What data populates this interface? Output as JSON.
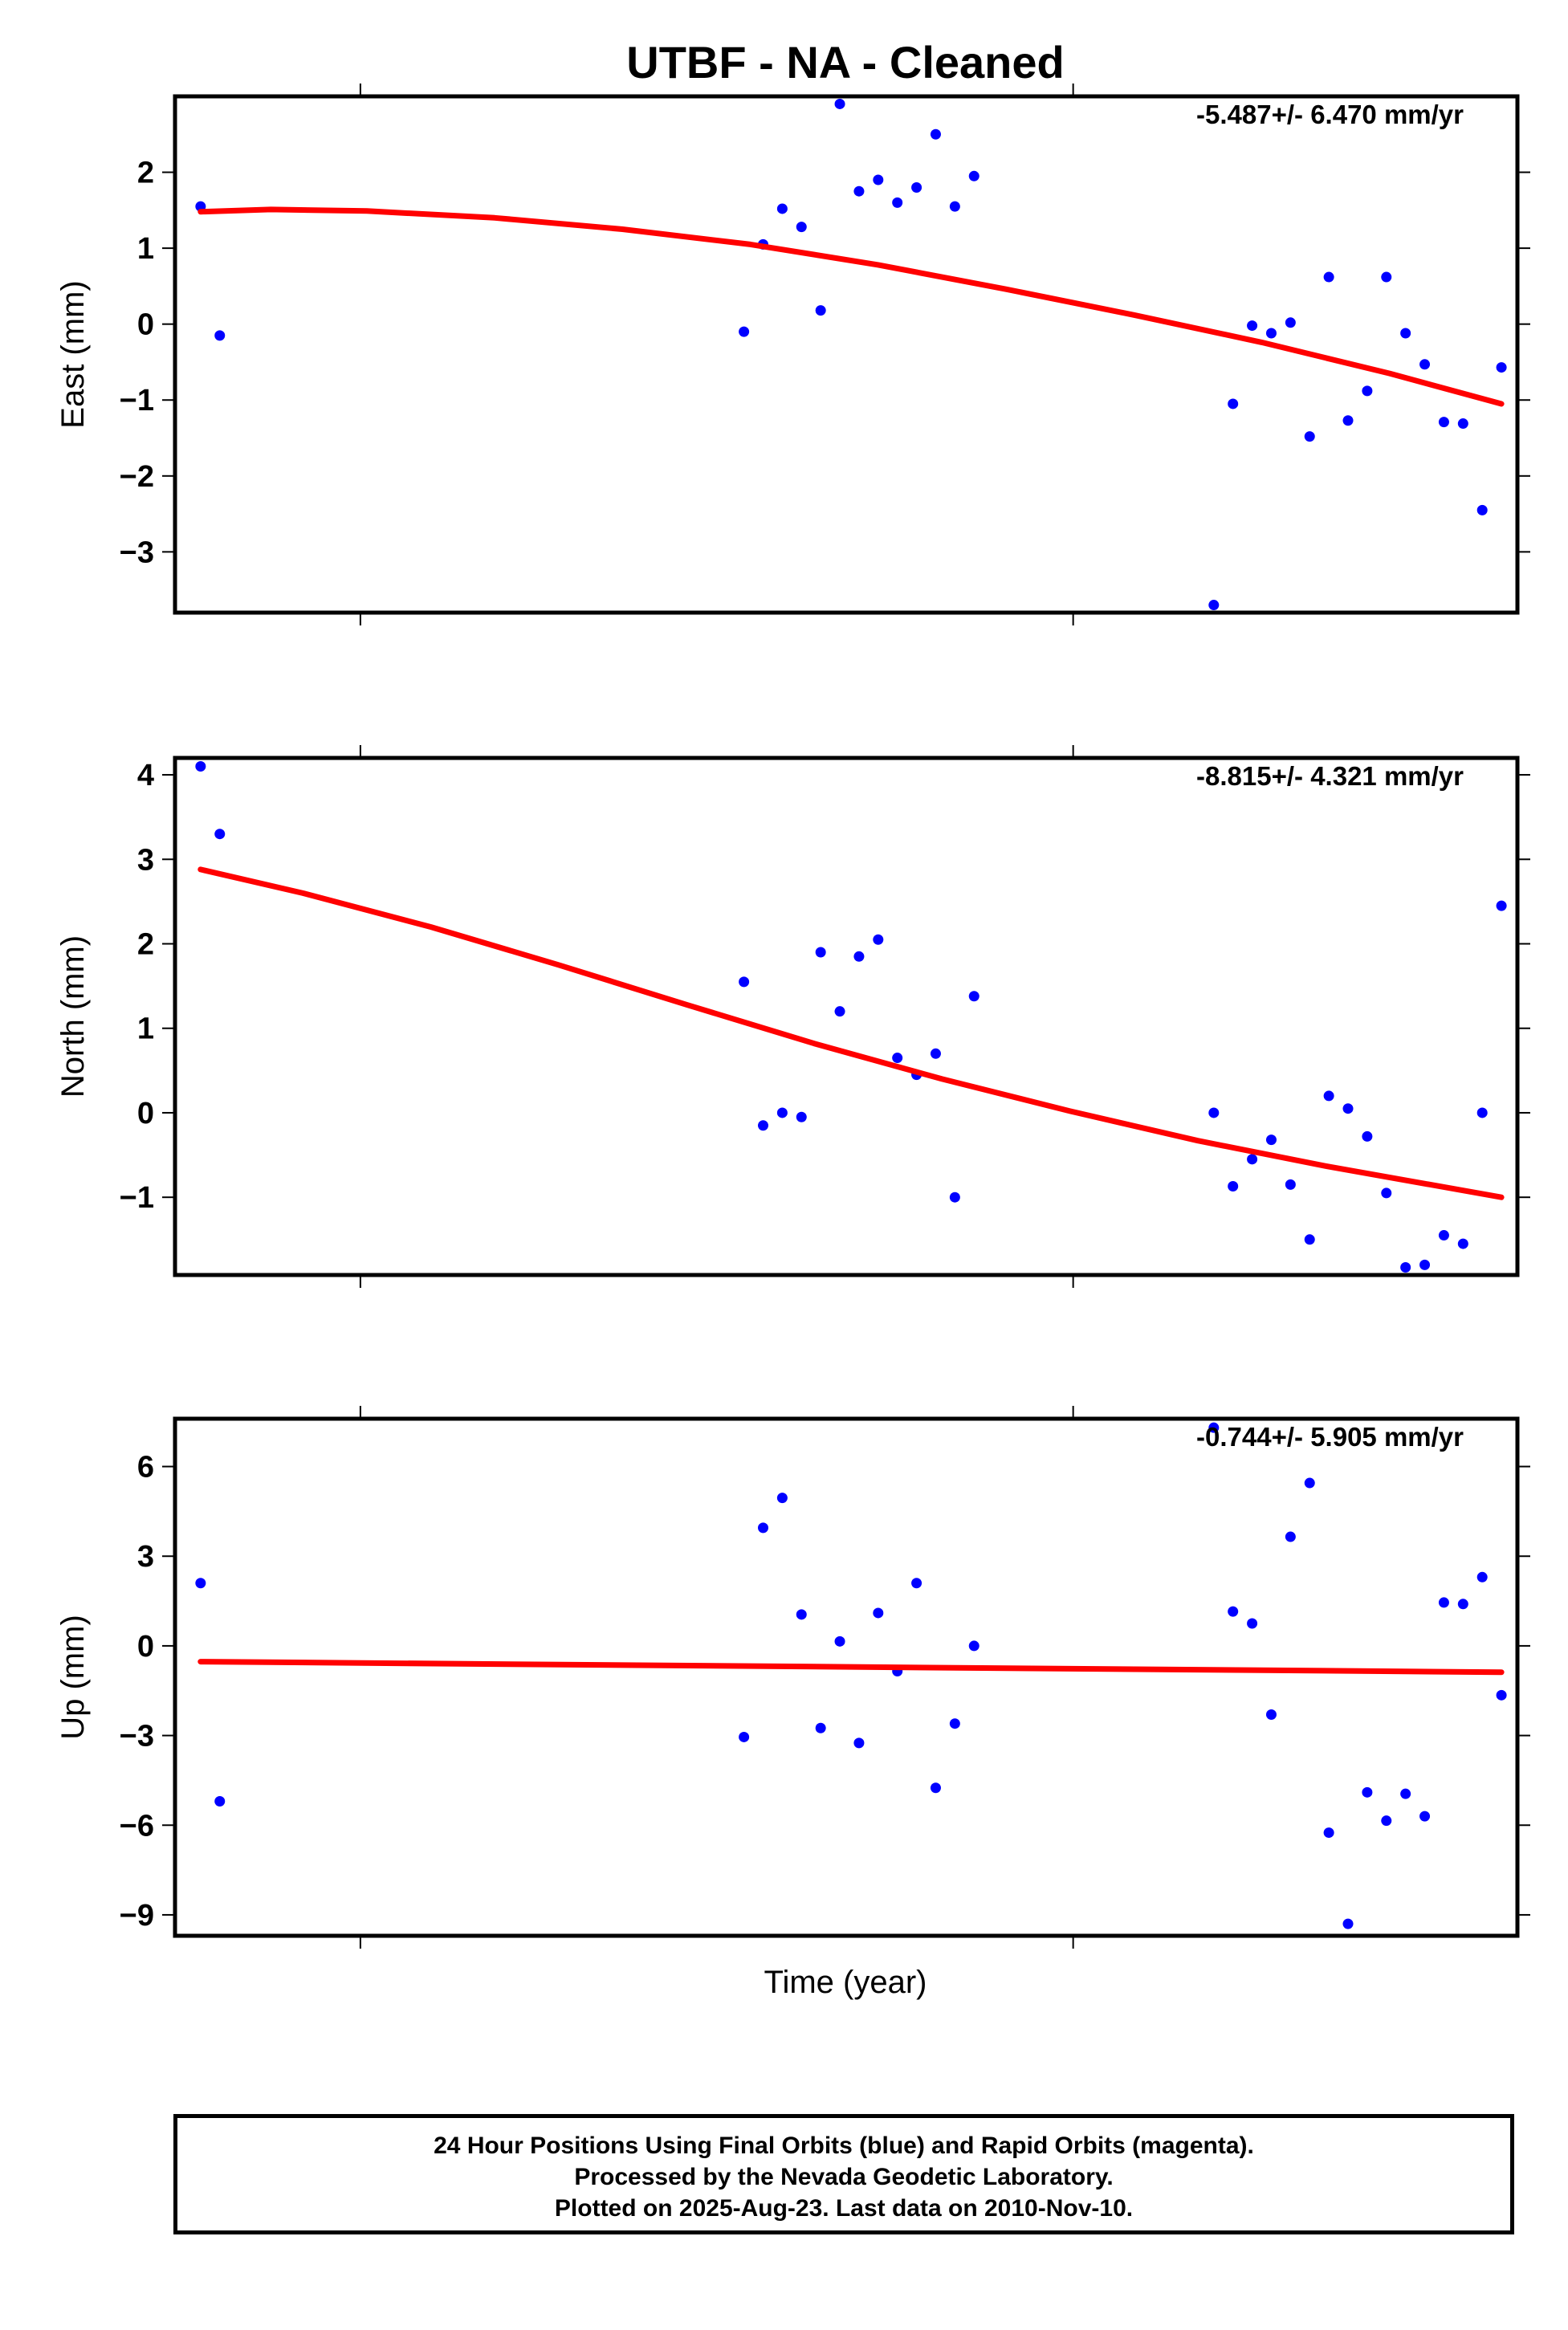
{
  "title": "UTBF  - NA - Cleaned",
  "xlabel": "Time (year)",
  "colors": {
    "fit_line": "#ff0000",
    "final_points": "#0000ff",
    "axes": "#000000"
  },
  "caption": [
    "24 Hour Positions Using Final Orbits (blue) and Rapid Orbits (magenta).",
    "Processed by the Nevada Geodetic Laboratory.",
    "Plotted on 2025-Aug-23. Last data on 2010-Nov-10."
  ],
  "chart_data": [
    {
      "type": "scatter",
      "ylabel": "East (mm)",
      "rate_label": "-5.487+/- 6.470 mm/yr",
      "ylim": [
        -3.8,
        3.0
      ],
      "yticks": [
        2,
        1,
        0,
        -1,
        -2,
        -3
      ],
      "ytick_labels": [
        "2",
        "1",
        "0",
        "−1",
        "−2",
        "−3"
      ],
      "xlim": [
        2010.46,
        2010.88
      ],
      "xtick_positions": [
        2010.518,
        2010.741
      ],
      "x": [
        2010.468,
        2010.474,
        2010.638,
        2010.644,
        2010.65,
        2010.656,
        2010.662,
        2010.668,
        2010.674,
        2010.68,
        2010.686,
        2010.692,
        2010.698,
        2010.704,
        2010.71,
        2010.785,
        2010.791,
        2010.797,
        2010.803,
        2010.809,
        2010.815,
        2010.821,
        2010.827,
        2010.833,
        2010.839,
        2010.845,
        2010.851,
        2010.857,
        2010.863,
        2010.869,
        2010.875
      ],
      "y": [
        1.55,
        -0.15,
        -0.1,
        1.05,
        1.52,
        1.28,
        0.18,
        2.9,
        1.75,
        1.9,
        1.6,
        1.8,
        2.5,
        1.55,
        1.95,
        -3.7,
        -1.05,
        -0.02,
        -0.12,
        0.02,
        -1.48,
        0.62,
        -1.27,
        -0.88,
        0.62,
        -0.12,
        -0.53,
        -1.29,
        -1.31,
        -2.45,
        -0.57
      ],
      "fit": {
        "x": [
          2010.468,
          2010.49,
          2010.52,
          2010.56,
          2010.6,
          2010.64,
          2010.68,
          2010.72,
          2010.76,
          2010.8,
          2010.84,
          2010.875
        ],
        "y": [
          1.48,
          1.51,
          1.49,
          1.4,
          1.25,
          1.05,
          0.78,
          0.46,
          0.12,
          -0.24,
          -0.65,
          -1.05
        ]
      }
    },
    {
      "type": "scatter",
      "ylabel": "North (mm)",
      "rate_label": "-8.815+/- 4.321 mm/yr",
      "ylim": [
        -1.92,
        4.2
      ],
      "yticks": [
        4,
        3,
        2,
        1,
        0,
        -1
      ],
      "ytick_labels": [
        "4",
        "3",
        "2",
        "1",
        "0",
        "−1"
      ],
      "xlim": [
        2010.46,
        2010.88
      ],
      "xtick_positions": [
        2010.518,
        2010.741
      ],
      "x": [
        2010.468,
        2010.474,
        2010.638,
        2010.644,
        2010.65,
        2010.656,
        2010.662,
        2010.668,
        2010.674,
        2010.68,
        2010.686,
        2010.692,
        2010.698,
        2010.704,
        2010.71,
        2010.785,
        2010.791,
        2010.797,
        2010.803,
        2010.809,
        2010.815,
        2010.821,
        2010.827,
        2010.833,
        2010.839,
        2010.845,
        2010.851,
        2010.857,
        2010.863,
        2010.869,
        2010.875
      ],
      "y": [
        4.1,
        3.3,
        1.55,
        -0.15,
        0.0,
        -0.05,
        1.9,
        1.2,
        1.85,
        2.05,
        0.65,
        0.45,
        0.7,
        -1.0,
        1.38,
        0.0,
        -0.87,
        -0.55,
        -0.32,
        -0.85,
        -1.5,
        0.2,
        0.05,
        -0.28,
        -0.95,
        -1.83,
        -1.8,
        -1.45,
        -1.55,
        0.0,
        2.45
      ],
      "fit": {
        "x": [
          2010.468,
          2010.5,
          2010.54,
          2010.58,
          2010.62,
          2010.66,
          2010.7,
          2010.74,
          2010.78,
          2010.82,
          2010.875
        ],
        "y": [
          2.88,
          2.6,
          2.2,
          1.75,
          1.28,
          0.82,
          0.4,
          0.02,
          -0.33,
          -0.63,
          -1.0
        ]
      }
    },
    {
      "type": "scatter",
      "ylabel": "Up (mm)",
      "rate_label": "-0.744+/- 5.905 mm/yr",
      "ylim": [
        -9.7,
        7.6
      ],
      "yticks": [
        6,
        3,
        0,
        -3,
        -6,
        -9
      ],
      "ytick_labels": [
        "6",
        "3",
        "0",
        "−3",
        "−6",
        "−9"
      ],
      "xlim": [
        2010.46,
        2010.88
      ],
      "xtick_positions": [
        2010.518,
        2010.741
      ],
      "x": [
        2010.468,
        2010.474,
        2010.638,
        2010.644,
        2010.65,
        2010.656,
        2010.662,
        2010.668,
        2010.674,
        2010.68,
        2010.686,
        2010.692,
        2010.698,
        2010.704,
        2010.71,
        2010.785,
        2010.791,
        2010.797,
        2010.803,
        2010.809,
        2010.815,
        2010.821,
        2010.827,
        2010.833,
        2010.839,
        2010.845,
        2010.851,
        2010.857,
        2010.863,
        2010.869,
        2010.875
      ],
      "y": [
        2.1,
        -5.2,
        -3.05,
        3.95,
        4.95,
        1.05,
        -2.75,
        0.15,
        -3.25,
        1.1,
        -0.85,
        2.1,
        -4.75,
        -2.6,
        0.0,
        7.3,
        1.15,
        0.75,
        -2.3,
        3.65,
        5.45,
        -6.25,
        -9.3,
        -4.9,
        -5.85,
        -4.95,
        -5.7,
        1.45,
        1.4,
        2.3,
        -1.65
      ],
      "fit": {
        "x": [
          2010.468,
          2010.875
        ],
        "y": [
          -0.53,
          -0.88
        ]
      }
    }
  ]
}
